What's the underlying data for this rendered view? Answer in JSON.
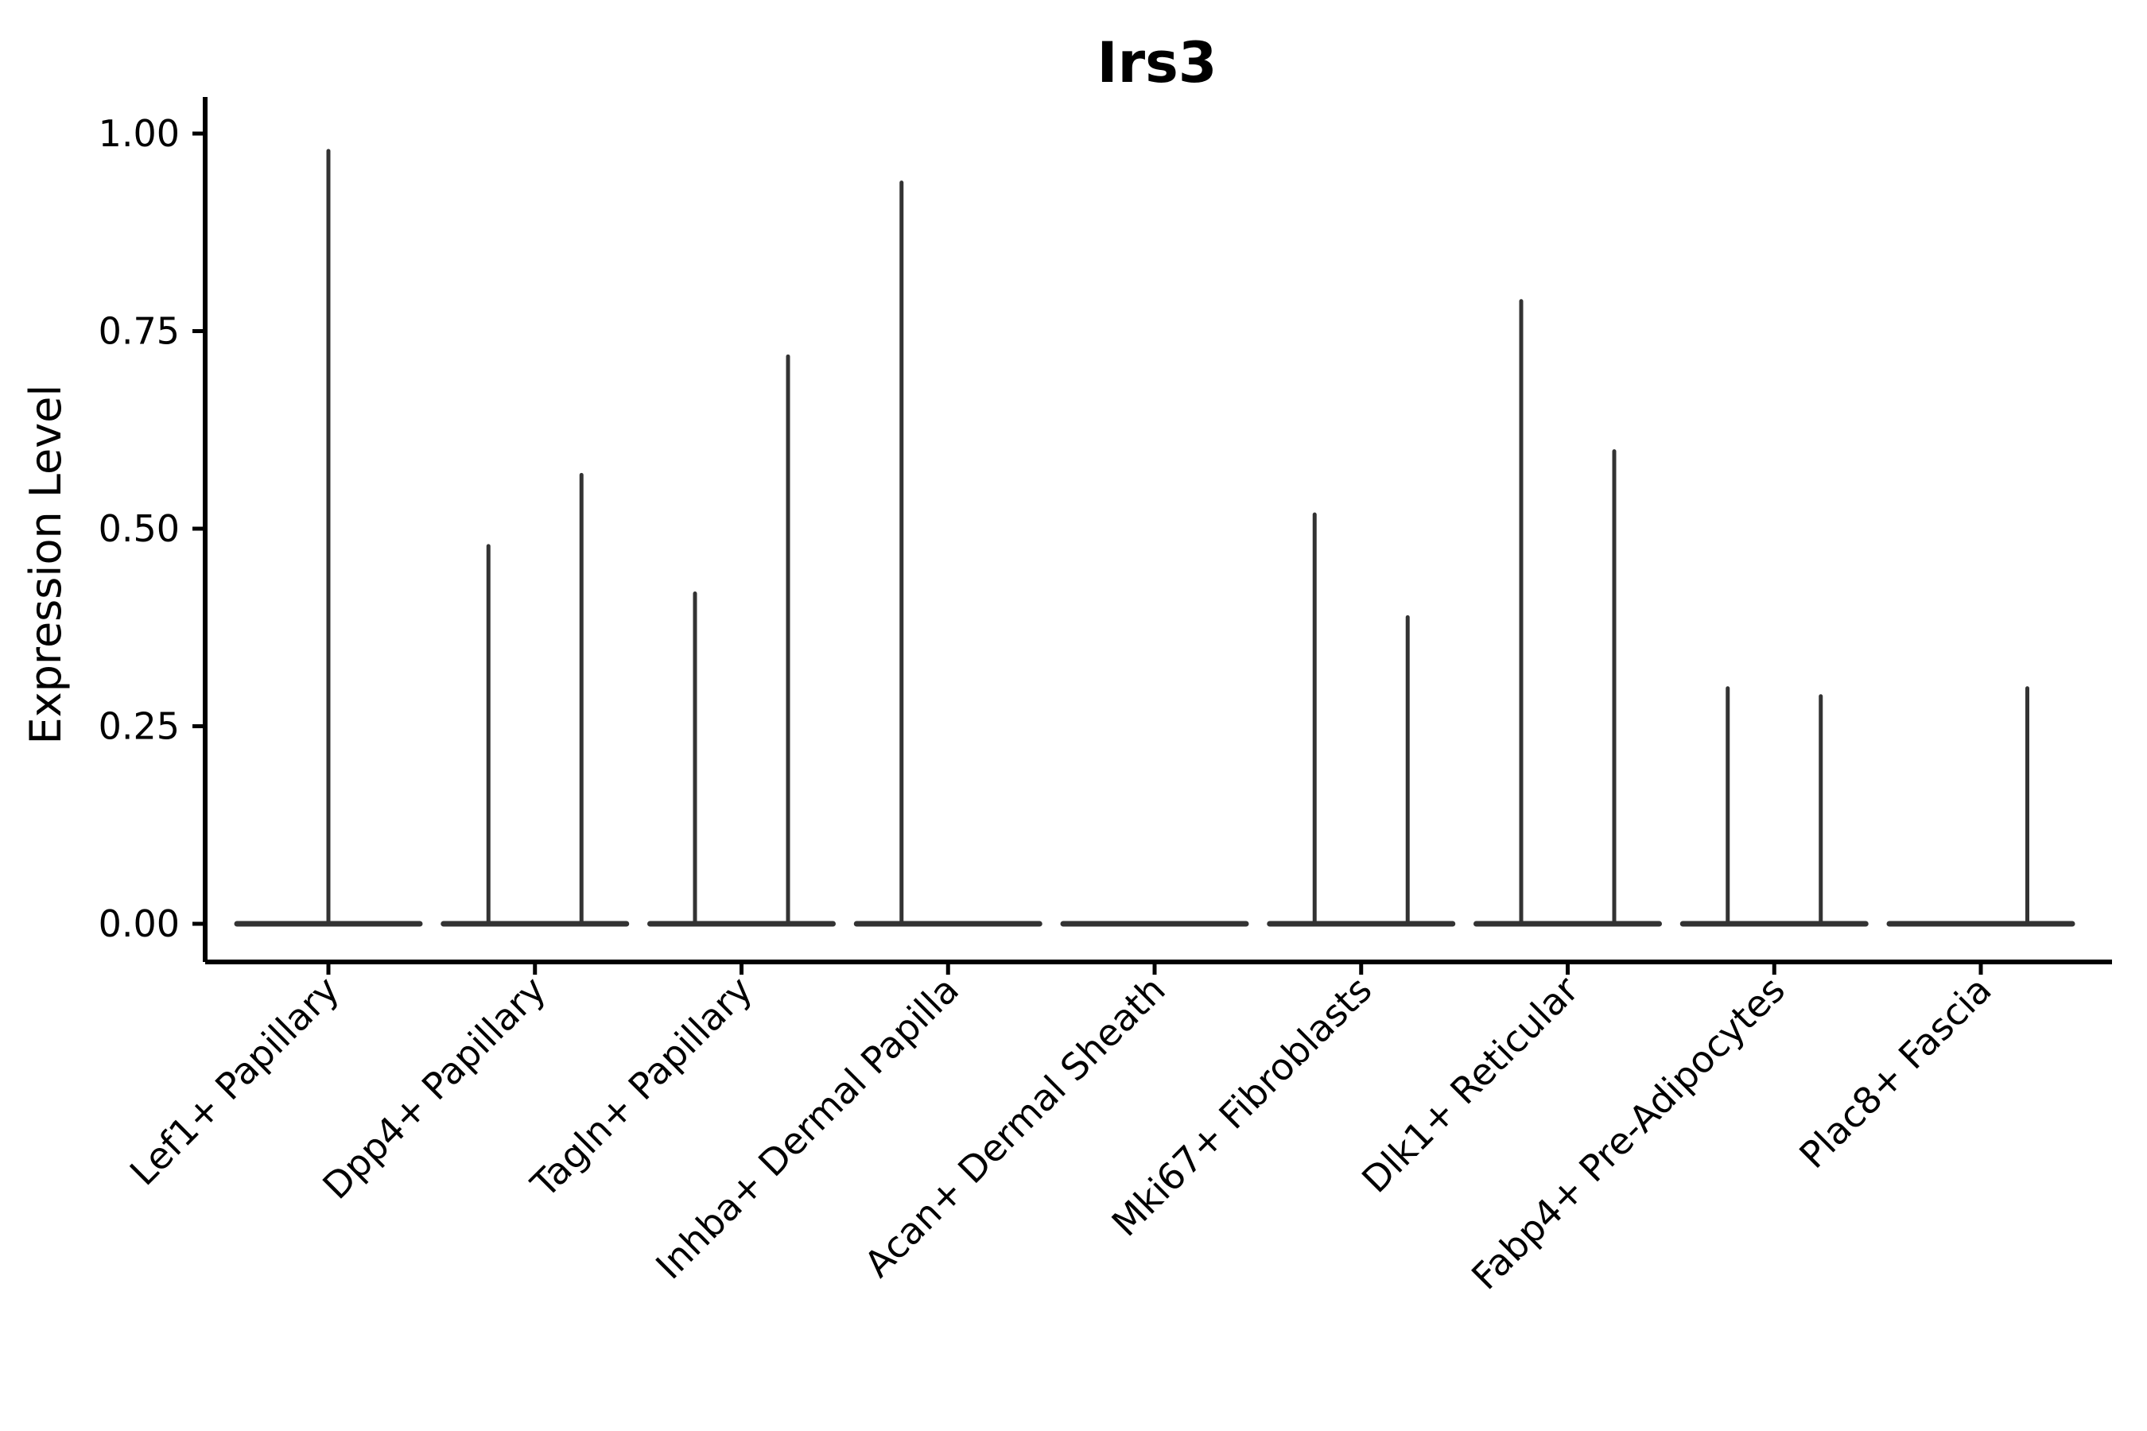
{
  "chart_data": {
    "type": "violin",
    "title": "Irs3",
    "ylabel": "Expression Level",
    "xlabel": "",
    "ylim": [
      0,
      1.0
    ],
    "grid": false,
    "legend_position": "none",
    "yticks": [
      {
        "value": 1.0,
        "label": "1.00"
      },
      {
        "value": 0.75,
        "label": "0.75"
      },
      {
        "value": 0.5,
        "label": "0.50"
      },
      {
        "value": 0.25,
        "label": "0.25"
      },
      {
        "value": 0.0,
        "label": "0.00"
      }
    ],
    "categories": [
      "Lef1+ Papillary",
      "Dpp4+ Papillary",
      "Tagln+ Papillary",
      "Inhba+ Dermal Papilla",
      "Acan+ Dermal Sheath",
      "Mki67+ Fibroblasts",
      "Dlk1+ Reticular",
      "Fabp4+ Pre-Adipocytes",
      "Plac8+ Fascia"
    ],
    "violins": [
      {
        "category": "Lef1+ Papillary",
        "layout": "single",
        "base_at": 0.0,
        "spikes": [
          {
            "slot": "center",
            "max": 0.98
          }
        ]
      },
      {
        "category": "Dpp4+ Papillary",
        "layout": "split",
        "base_at": 0.0,
        "spikes": [
          {
            "slot": "left",
            "max": 0.48
          },
          {
            "slot": "right",
            "max": 0.57
          }
        ]
      },
      {
        "category": "Tagln+ Papillary",
        "layout": "split",
        "base_at": 0.0,
        "spikes": [
          {
            "slot": "left",
            "max": 0.42
          },
          {
            "slot": "right",
            "max": 0.72
          }
        ]
      },
      {
        "category": "Inhba+ Dermal Papilla",
        "layout": "split",
        "base_at": 0.0,
        "spikes": [
          {
            "slot": "left",
            "max": 0.94
          }
        ]
      },
      {
        "category": "Acan+ Dermal Sheath",
        "layout": "split",
        "base_at": 0.0,
        "spikes": []
      },
      {
        "category": "Mki67+ Fibroblasts",
        "layout": "split",
        "base_at": 0.0,
        "spikes": [
          {
            "slot": "left",
            "max": 0.52
          },
          {
            "slot": "right",
            "max": 0.39
          }
        ]
      },
      {
        "category": "Dlk1+ Reticular",
        "layout": "split",
        "base_at": 0.0,
        "spikes": [
          {
            "slot": "left",
            "max": 0.79
          },
          {
            "slot": "right",
            "max": 0.6
          }
        ]
      },
      {
        "category": "Fabp4+ Pre-Adipocytes",
        "layout": "split",
        "base_at": 0.0,
        "spikes": [
          {
            "slot": "left",
            "max": 0.3
          },
          {
            "slot": "right",
            "max": 0.29
          }
        ]
      },
      {
        "category": "Plac8+ Fascia",
        "layout": "split",
        "base_at": 0.0,
        "spikes": [
          {
            "slot": "right",
            "max": 0.3
          }
        ]
      }
    ],
    "style": {
      "violin_color": "#333333",
      "axis_color": "#000000",
      "text_color": "#000000",
      "background": "#ffffff"
    }
  }
}
